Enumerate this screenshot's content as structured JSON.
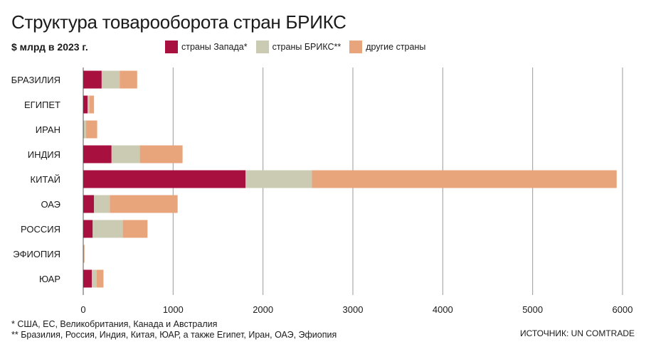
{
  "chart_data": {
    "type": "bar",
    "orientation": "horizontal",
    "stacked": true,
    "title": "Структура товарооборота стран БРИКС",
    "subtitle": "$ млрд в 2023 г.",
    "categories": [
      "БРАЗИЛИЯ",
      "ЕГИПЕТ",
      "ИРАН",
      "ИНДИЯ",
      "КИТАЙ",
      "ОАЭ",
      "РОССИЯ",
      "ЭФИОПИЯ",
      "ЮАР"
    ],
    "series": [
      {
        "name": "страны Запада*",
        "color": "#a8103f",
        "values": [
          205,
          48,
          5,
          315,
          1805,
          120,
          105,
          5,
          95
        ]
      },
      {
        "name": "страны БРИКС**",
        "color": "#cbcbb4",
        "values": [
          200,
          22,
          25,
          315,
          740,
          175,
          335,
          5,
          55
        ]
      },
      {
        "name": "другие страны",
        "color": "#e8a57c",
        "values": [
          195,
          50,
          125,
          475,
          3390,
          755,
          275,
          5,
          75
        ]
      }
    ],
    "xlim": [
      0,
      6000
    ],
    "xticks": [
      "0",
      "1000",
      "2000",
      "3000",
      "4000",
      "5000",
      "6000"
    ],
    "grid": true,
    "legend_position": "top"
  },
  "notes": {
    "western": "* США, ЕС, Великобритания, Канада и Австралия",
    "brics": "** Бразилия, Россия, Индия, Китая, ЮАР, а также Египет, Иран, ОАЭ, Эфиопия"
  },
  "source": "ИСТОЧНИК: UN COMTRADE"
}
